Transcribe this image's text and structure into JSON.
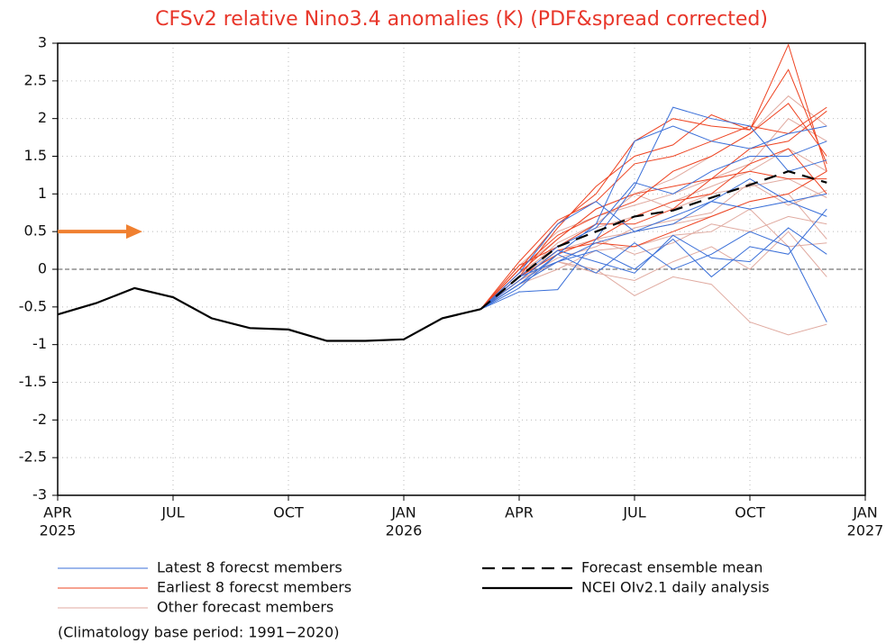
{
  "chart_data": {
    "type": "line",
    "title": "CFSv2 relative Nino3.4 anomalies (K) (PDF&spread corrected)",
    "note": "(Climatology base period: 1991−2020)",
    "xlim": [
      "2025-04",
      "2027-01"
    ],
    "xticks": [
      {
        "value": "2025-04",
        "label": "APR",
        "year": "2025"
      },
      {
        "value": "2025-07",
        "label": "JUL"
      },
      {
        "value": "2025-10",
        "label": "OCT"
      },
      {
        "value": "2026-01",
        "label": "JAN",
        "year": "2026"
      },
      {
        "value": "2026-04",
        "label": "APR"
      },
      {
        "value": "2026-07",
        "label": "JUL"
      },
      {
        "value": "2026-10",
        "label": "OCT"
      },
      {
        "value": "2027-01",
        "label": "JAN",
        "year": "2027"
      }
    ],
    "ylim": [
      -3,
      3
    ],
    "yticks": [
      -3,
      -2.5,
      -2,
      -1.5,
      -1,
      -0.5,
      0,
      0.5,
      1,
      1.5,
      2,
      2.5,
      3
    ],
    "grid": true,
    "reference_line": 0,
    "annotations": [
      {
        "type": "arrow",
        "y": 0.5,
        "color": "#f08030"
      }
    ],
    "series": [
      {
        "name": "Latest 8 forecst members",
        "color": "#3a6fd8",
        "x": [
          "2026-03",
          "2026-04",
          "2026-05",
          "2026-06",
          "2026-07",
          "2026-08",
          "2026-09",
          "2026-10",
          "2026-11",
          "2026-12"
        ],
        "members": [
          [
            -0.53,
            -0.3,
            -0.27,
            0.4,
            1.1,
            2.15,
            2.0,
            1.9,
            1.3,
            1.45
          ],
          [
            -0.53,
            -0.2,
            0.2,
            0.6,
            1.7,
            1.9,
            1.7,
            1.6,
            1.8,
            1.9
          ],
          [
            -0.53,
            -0.1,
            0.1,
            0.25,
            0.0,
            0.4,
            -0.1,
            0.3,
            0.2,
            0.8
          ],
          [
            -0.53,
            -0.25,
            0.2,
            -0.05,
            0.35,
            0.0,
            0.2,
            0.5,
            0.3,
            -0.7
          ],
          [
            -0.53,
            -0.05,
            0.6,
            0.9,
            0.5,
            0.7,
            0.9,
            0.8,
            0.9,
            0.7
          ],
          [
            -0.53,
            -0.15,
            0.25,
            0.1,
            -0.05,
            0.45,
            0.15,
            0.1,
            0.55,
            0.2
          ],
          [
            -0.53,
            -0.1,
            0.3,
            0.55,
            1.15,
            1.0,
            1.3,
            1.5,
            1.5,
            1.7
          ],
          [
            -0.53,
            -0.2,
            0.1,
            0.35,
            0.5,
            0.6,
            0.9,
            1.2,
            0.9,
            1.0
          ]
        ]
      },
      {
        "name": "Earliest 8 forecst members",
        "color": "#ee4422",
        "x": [
          "2026-03",
          "2026-04",
          "2026-05",
          "2026-06",
          "2026-07",
          "2026-08",
          "2026-09",
          "2026-10",
          "2026-11",
          "2026-12"
        ],
        "members": [
          [
            -0.53,
            0.0,
            0.6,
            1.0,
            1.7,
            2.0,
            1.9,
            1.85,
            2.98,
            1.3
          ],
          [
            -0.53,
            -0.1,
            0.55,
            1.1,
            1.5,
            1.65,
            2.05,
            1.85,
            2.65,
            1.4
          ],
          [
            -0.53,
            0.1,
            0.65,
            0.9,
            1.4,
            1.5,
            1.7,
            1.9,
            1.8,
            2.15
          ],
          [
            -0.53,
            -0.05,
            0.4,
            0.8,
            1.0,
            1.1,
            1.2,
            1.3,
            1.2,
            1.2
          ],
          [
            -0.53,
            -0.1,
            0.2,
            0.4,
            0.7,
            0.9,
            1.0,
            1.4,
            1.6,
            1.0
          ],
          [
            -0.53,
            0.05,
            0.3,
            0.6,
            0.6,
            0.8,
            1.2,
            1.6,
            1.7,
            2.1
          ],
          [
            -0.53,
            -0.15,
            0.25,
            0.35,
            0.3,
            0.5,
            0.7,
            0.9,
            1.0,
            1.3
          ],
          [
            -0.53,
            0.0,
            0.45,
            0.7,
            0.9,
            1.3,
            1.5,
            1.8,
            2.2,
            1.5
          ]
        ]
      },
      {
        "name": "Other forecast members",
        "color": "#e0aaa0",
        "x": [
          "2026-03",
          "2026-04",
          "2026-05",
          "2026-06",
          "2026-07",
          "2026-08",
          "2026-09",
          "2026-10",
          "2026-11",
          "2026-12"
        ],
        "members": [
          [
            -0.53,
            -0.2,
            0.1,
            0.0,
            -0.35,
            -0.1,
            -0.2,
            -0.7,
            -0.87,
            -0.73
          ],
          [
            -0.53,
            -0.1,
            0.2,
            0.4,
            0.5,
            0.6,
            0.7,
            0.9,
            1.0,
            0.4
          ],
          [
            -0.53,
            0.0,
            0.4,
            0.8,
            1.0,
            1.2,
            1.5,
            1.8,
            2.3,
            1.9
          ],
          [
            -0.53,
            -0.15,
            0.1,
            -0.05,
            -0.15,
            0.1,
            0.3,
            0.0,
            0.5,
            -0.1
          ],
          [
            -0.53,
            -0.05,
            0.3,
            0.55,
            0.7,
            0.9,
            1.1,
            1.3,
            1.6,
            1.3
          ],
          [
            -0.53,
            -0.1,
            0.25,
            0.4,
            0.2,
            0.35,
            0.6,
            0.5,
            0.7,
            0.6
          ],
          [
            -0.53,
            0.05,
            0.5,
            0.7,
            0.85,
            1.0,
            1.2,
            1.4,
            2.0,
            1.7
          ],
          [
            -0.53,
            -0.2,
            0.0,
            0.25,
            0.3,
            0.45,
            0.5,
            0.8,
            0.3,
            0.35
          ],
          [
            -0.53,
            -0.1,
            0.35,
            0.6,
            1.0,
            0.8,
            1.0,
            1.1,
            1.2,
            0.95
          ],
          [
            -0.53,
            -0.15,
            0.15,
            0.3,
            0.55,
            0.65,
            0.75,
            1.15,
            0.85,
            1.05
          ]
        ]
      },
      {
        "name": "Forecast ensemble mean",
        "color": "#000000",
        "dash": true,
        "x": [
          "2026-03",
          "2026-04",
          "2026-05",
          "2026-06",
          "2026-07",
          "2026-08",
          "2026-09",
          "2026-10",
          "2026-11",
          "2026-12"
        ],
        "values": [
          -0.53,
          -0.1,
          0.3,
          0.5,
          0.7,
          0.78,
          0.95,
          1.12,
          1.3,
          1.15
        ]
      },
      {
        "name": "NCEI OIv2.1 daily analysis",
        "color": "#000000",
        "x": [
          "2025-04",
          "2025-05",
          "2025-06",
          "2025-07",
          "2025-08",
          "2025-09",
          "2025-10",
          "2025-11",
          "2025-12",
          "2026-01",
          "2026-02",
          "2026-03"
        ],
        "values": [
          -0.6,
          -0.45,
          -0.25,
          -0.37,
          -0.65,
          -0.78,
          -0.8,
          -0.95,
          -0.95,
          -0.93,
          -0.65,
          -0.53
        ]
      }
    ]
  }
}
